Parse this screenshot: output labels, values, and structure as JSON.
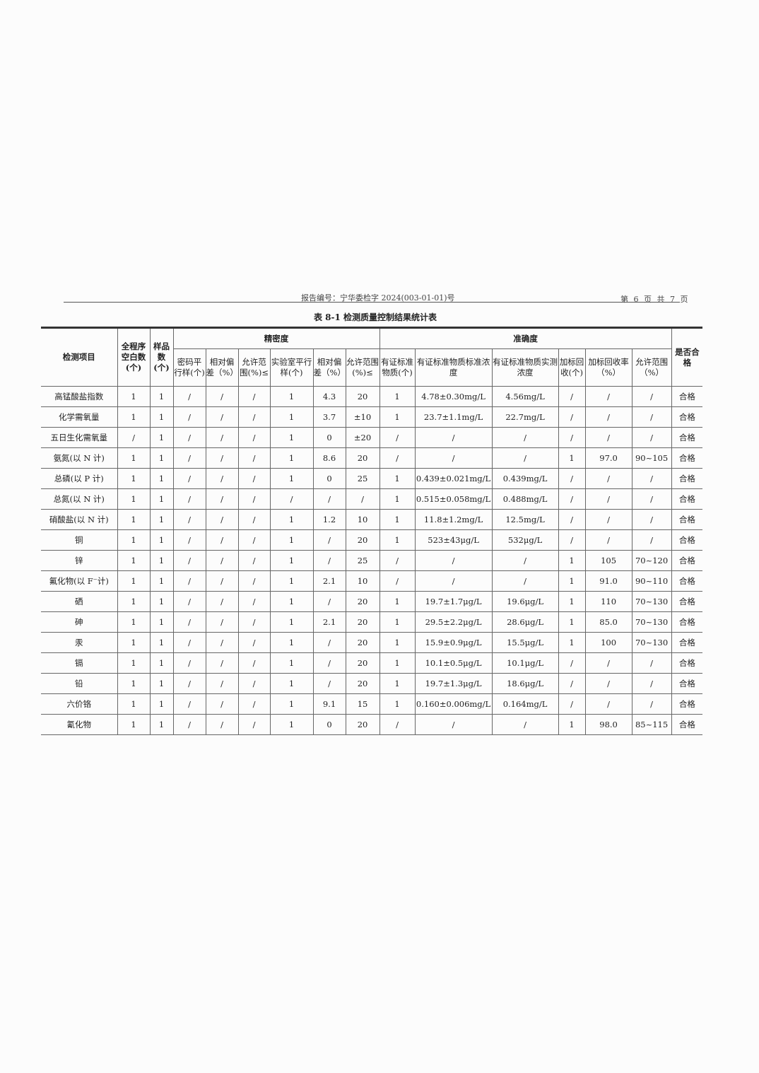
{
  "header": {
    "report_no": "报告编号：宁华委检字 2024(003-01-01)号",
    "page": "第 6 页 共 7 页"
  },
  "title": "表 8-1  检测质量控制结果统计表",
  "columns": {
    "item": "检测项目",
    "blank": "全程序空白数(个)",
    "samples": "样品数(个)",
    "precision": "精密度",
    "accuracy": "准确度",
    "pass": "是否合格",
    "sub": [
      "密码平行样(个)",
      "相对偏差（%）",
      "允许范围(%)≤",
      "实验室平行样(个)",
      "相对偏差（%）",
      "允许范围(%)≤",
      "有证标准物质(个)",
      "有证标准物质标准浓度",
      "有证标准物质实测浓度",
      "加标回收(个)",
      "加标回收率（%）",
      "允许范围（%）"
    ]
  },
  "rows": [
    [
      "高锰酸盐指数",
      "1",
      "1",
      "/",
      "/",
      "/",
      "1",
      "4.3",
      "20",
      "1",
      "4.78±0.30mg/L",
      "4.56mg/L",
      "/",
      "/",
      "/",
      "合格"
    ],
    [
      "化学需氧量",
      "1",
      "1",
      "/",
      "/",
      "/",
      "1",
      "3.7",
      "±10",
      "1",
      "23.7±1.1mg/L",
      "22.7mg/L",
      "/",
      "/",
      "/",
      "合格"
    ],
    [
      "五日生化需氧量",
      "/",
      "1",
      "/",
      "/",
      "/",
      "1",
      "0",
      "±20",
      "/",
      "/",
      "/",
      "/",
      "/",
      "/",
      "合格"
    ],
    [
      "氨氮(以 N 计)",
      "1",
      "1",
      "/",
      "/",
      "/",
      "1",
      "8.6",
      "20",
      "/",
      "/",
      "/",
      "1",
      "97.0",
      "90~105",
      "合格"
    ],
    [
      "总磷(以 P 计)",
      "1",
      "1",
      "/",
      "/",
      "/",
      "1",
      "0",
      "25",
      "1",
      "0.439±0.021mg/L",
      "0.439mg/L",
      "/",
      "/",
      "/",
      "合格"
    ],
    [
      "总氮(以 N 计)",
      "1",
      "1",
      "/",
      "/",
      "/",
      "/",
      "/",
      "/",
      "1",
      "0.515±0.058mg/L",
      "0.488mg/L",
      "/",
      "/",
      "/",
      "合格"
    ],
    [
      "硝酸盐(以 N 计)",
      "1",
      "1",
      "/",
      "/",
      "/",
      "1",
      "1.2",
      "10",
      "1",
      "11.8±1.2mg/L",
      "12.5mg/L",
      "/",
      "/",
      "/",
      "合格"
    ],
    [
      "铜",
      "1",
      "1",
      "/",
      "/",
      "/",
      "1",
      "/",
      "20",
      "1",
      "523±43μg/L",
      "532μg/L",
      "/",
      "/",
      "/",
      "合格"
    ],
    [
      "锌",
      "1",
      "1",
      "/",
      "/",
      "/",
      "1",
      "/",
      "25",
      "/",
      "/",
      "/",
      "1",
      "105",
      "70~120",
      "合格"
    ],
    [
      "氟化物(以 F⁻计)",
      "1",
      "1",
      "/",
      "/",
      "/",
      "1",
      "2.1",
      "10",
      "/",
      "/",
      "/",
      "1",
      "91.0",
      "90~110",
      "合格"
    ],
    [
      "硒",
      "1",
      "1",
      "/",
      "/",
      "/",
      "1",
      "/",
      "20",
      "1",
      "19.7±1.7μg/L",
      "19.6μg/L",
      "1",
      "110",
      "70~130",
      "合格"
    ],
    [
      "砷",
      "1",
      "1",
      "/",
      "/",
      "/",
      "1",
      "2.1",
      "20",
      "1",
      "29.5±2.2μg/L",
      "28.6μg/L",
      "1",
      "85.0",
      "70~130",
      "合格"
    ],
    [
      "汞",
      "1",
      "1",
      "/",
      "/",
      "/",
      "1",
      "/",
      "20",
      "1",
      "15.9±0.9μg/L",
      "15.5μg/L",
      "1",
      "100",
      "70~130",
      "合格"
    ],
    [
      "镉",
      "1",
      "1",
      "/",
      "/",
      "/",
      "1",
      "/",
      "20",
      "1",
      "10.1±0.5μg/L",
      "10.1μg/L",
      "/",
      "/",
      "/",
      "合格"
    ],
    [
      "铅",
      "1",
      "1",
      "/",
      "/",
      "/",
      "1",
      "/",
      "20",
      "1",
      "19.7±1.3μg/L",
      "18.6μg/L",
      "/",
      "/",
      "/",
      "合格"
    ],
    [
      "六价铬",
      "1",
      "1",
      "/",
      "/",
      "/",
      "1",
      "9.1",
      "15",
      "1",
      "0.160±0.006mg/L",
      "0.164mg/L",
      "/",
      "/",
      "/",
      "合格"
    ],
    [
      "氰化物",
      "1",
      "1",
      "/",
      "/",
      "/",
      "1",
      "0",
      "20",
      "/",
      "/",
      "/",
      "1",
      "98.0",
      "85~115",
      "合格"
    ]
  ]
}
